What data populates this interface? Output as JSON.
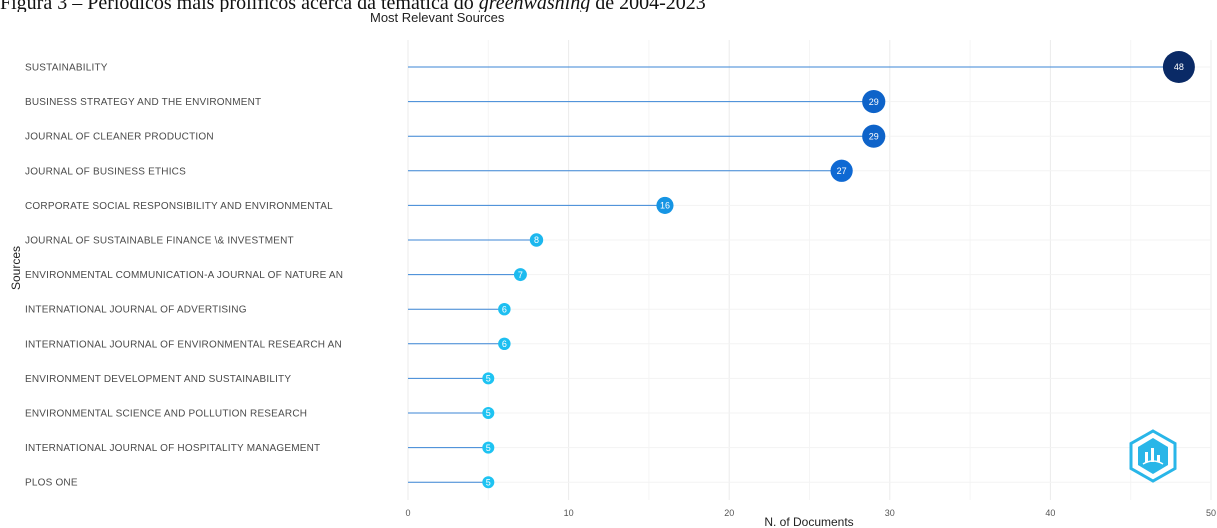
{
  "caption": {
    "prefix": "Figura 3 – Periódicos mais prolíficos acerca da temática do ",
    "italic": "greenwashing",
    "suffix": " de 2004-2023"
  },
  "chart_data": {
    "type": "lollipop",
    "orientation": "horizontal",
    "title": "Most Relevant Sources",
    "xlabel": "N. of Documents",
    "ylabel": "Sources",
    "xlim": [
      0,
      50
    ],
    "xticks": [
      0,
      10,
      20,
      30,
      40,
      50
    ],
    "grid": true,
    "color_scale": {
      "low": "#1ec3f2",
      "mid": "#0f6ad6",
      "high": "#0a2a66"
    },
    "logo_icon": "bibliometrix-logo-icon",
    "categories": [
      "SUSTAINABILITY",
      "BUSINESS STRATEGY AND THE ENVIRONMENT",
      "JOURNAL OF CLEANER PRODUCTION",
      "JOURNAL OF BUSINESS ETHICS",
      "CORPORATE SOCIAL RESPONSIBILITY AND ENVIRONMENTAL",
      "JOURNAL OF SUSTAINABLE FINANCE \\& INVESTMENT",
      "ENVIRONMENTAL COMMUNICATION-A JOURNAL OF NATURE AN",
      "INTERNATIONAL JOURNAL OF ADVERTISING",
      "INTERNATIONAL JOURNAL OF ENVIRONMENTAL RESEARCH AN",
      "ENVIRONMENT DEVELOPMENT AND SUSTAINABILITY",
      "ENVIRONMENTAL SCIENCE AND POLLUTION RESEARCH",
      "INTERNATIONAL JOURNAL OF HOSPITALITY MANAGEMENT",
      "PLOS ONE"
    ],
    "values": [
      48,
      29,
      29,
      27,
      16,
      8,
      7,
      6,
      6,
      5,
      5,
      5,
      5
    ]
  }
}
